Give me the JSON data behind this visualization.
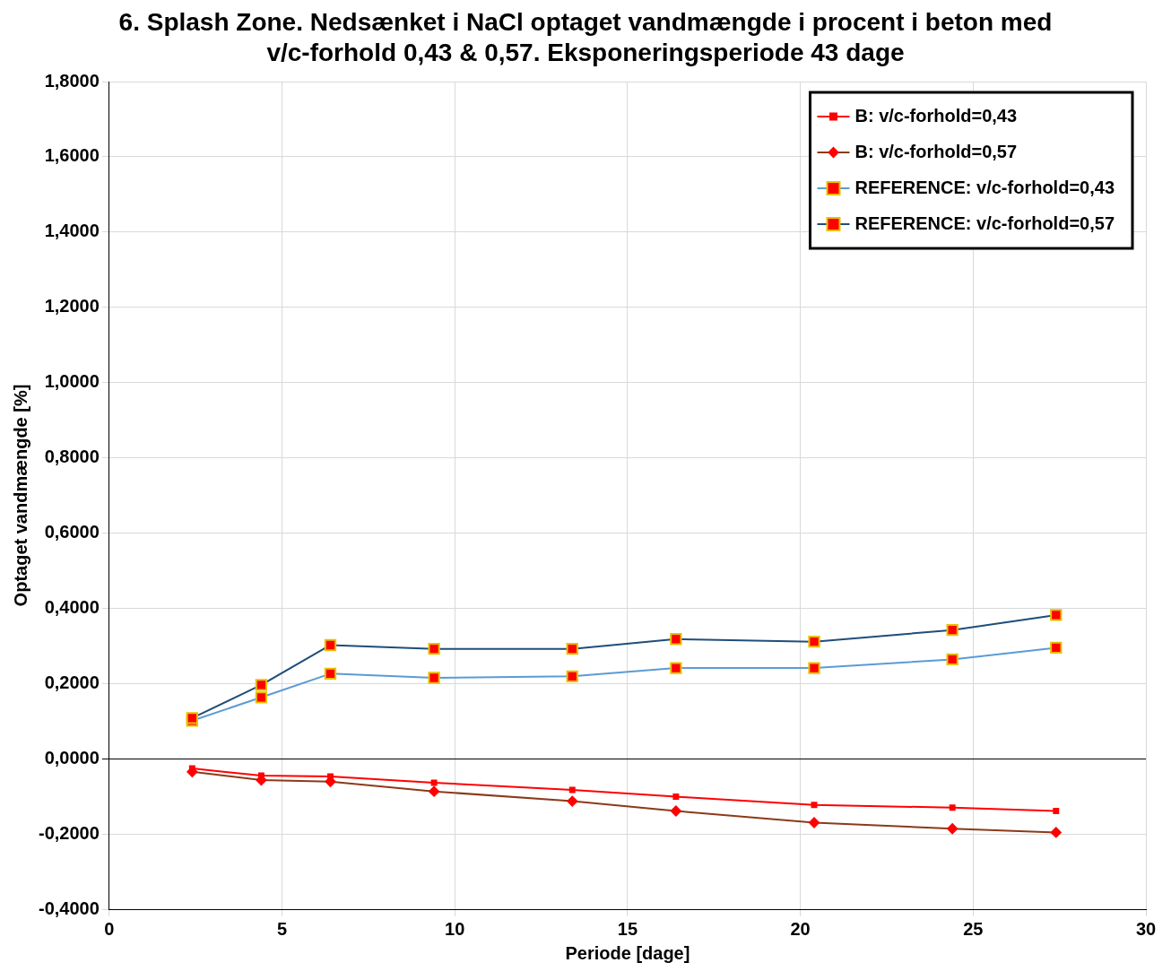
{
  "chart_data": {
    "type": "line",
    "title": "6. Splash Zone. Nedsænket i NaCl optaget vandmængde i procent i beton med v/c-forhold 0,43 & 0,57.  Eksponeringsperiode 43 dage",
    "xlabel": "Periode [dage]",
    "ylabel": "Optaget vandmængde [%]",
    "x": [
      2.4,
      4.4,
      6.4,
      9.4,
      13.4,
      16.4,
      20.4,
      24.4,
      27.4
    ],
    "series": [
      {
        "name": "B: v/c-forhold=0,43",
        "color": "#ff0000",
        "marker": "square",
        "values": [
          -0.026,
          -0.045,
          -0.047,
          -0.064,
          -0.083,
          -0.101,
          -0.123,
          -0.13,
          -0.139
        ]
      },
      {
        "name": "B: v/c-forhold=0,57",
        "color": "#8b3a1a",
        "marker": "diamond",
        "values": [
          -0.035,
          -0.057,
          -0.061,
          -0.087,
          -0.113,
          -0.139,
          -0.17,
          -0.186,
          -0.196
        ]
      },
      {
        "name": "REFERENCE: v/c-forhold=0,43",
        "color": "#5b9bd5",
        "marker": "square",
        "values": [
          0.101,
          0.163,
          0.226,
          0.215,
          0.219,
          0.241,
          0.241,
          0.264,
          0.295
        ]
      },
      {
        "name": "REFERENCE: v/c-forhold=0,57",
        "color": "#1f4e79",
        "marker": "square",
        "values": [
          0.108,
          0.196,
          0.302,
          0.292,
          0.292,
          0.318,
          0.311,
          0.342,
          0.382
        ]
      }
    ],
    "xlim": [
      0,
      30
    ],
    "xticks": [
      0,
      5,
      10,
      15,
      20,
      25,
      30
    ],
    "ylim": [
      -0.4,
      1.8
    ],
    "yticks": [
      {
        "value": -0.4,
        "label": "-0,4000"
      },
      {
        "value": -0.2,
        "label": "-0,2000"
      },
      {
        "value": 0,
        "label": "0,0000"
      },
      {
        "value": 0.2,
        "label": "0,2000"
      },
      {
        "value": 0.4,
        "label": "0,4000"
      },
      {
        "value": 0.6,
        "label": "0,6000"
      },
      {
        "value": 0.8,
        "label": "0,8000"
      },
      {
        "value": 1.0,
        "label": "1,0000"
      },
      {
        "value": 1.2,
        "label": "1,2000"
      },
      {
        "value": 1.4,
        "label": "1,4000"
      },
      {
        "value": 1.6,
        "label": "1,6000"
      },
      {
        "value": 1.8,
        "label": "1,8000"
      }
    ],
    "grid": true,
    "legend": "top right"
  }
}
